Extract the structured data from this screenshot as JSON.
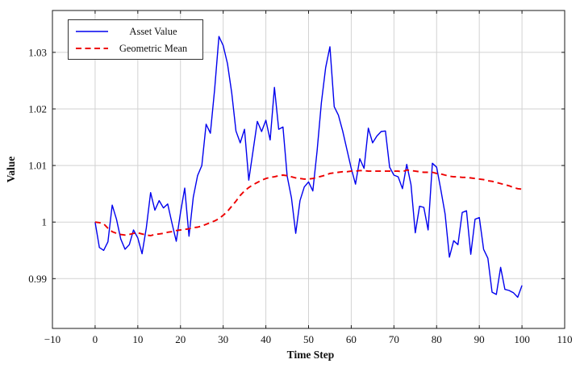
{
  "chart_data": {
    "type": "line",
    "title": "",
    "xlabel": "Time Step",
    "ylabel": "Value",
    "xlim": [
      -10,
      110
    ],
    "ylim": [
      0.9812,
      1.0374
    ],
    "x_ticks": [
      -10,
      0,
      10,
      20,
      30,
      40,
      50,
      60,
      70,
      80,
      90,
      100,
      110
    ],
    "x_tick_labels": [
      "−10",
      "0",
      "10",
      "20",
      "30",
      "40",
      "50",
      "60",
      "70",
      "80",
      "90",
      "100",
      "110"
    ],
    "y_ticks": [
      0.99,
      1.0,
      1.01,
      1.02,
      1.03
    ],
    "y_tick_labels": [
      "0.99",
      "1",
      "1.01",
      "1.02",
      "1.03"
    ],
    "grid": true,
    "legend_position": "top-left",
    "x": [
      0,
      1,
      2,
      3,
      4,
      5,
      6,
      7,
      8,
      9,
      10,
      11,
      12,
      13,
      14,
      15,
      16,
      17,
      18,
      19,
      20,
      21,
      22,
      23,
      24,
      25,
      26,
      27,
      28,
      29,
      30,
      31,
      32,
      33,
      34,
      35,
      36,
      37,
      38,
      39,
      40,
      41,
      42,
      43,
      44,
      45,
      46,
      47,
      48,
      49,
      50,
      51,
      52,
      53,
      54,
      55,
      56,
      57,
      58,
      59,
      60,
      61,
      62,
      63,
      64,
      65,
      66,
      67,
      68,
      69,
      70,
      71,
      72,
      73,
      74,
      75,
      76,
      77,
      78,
      79,
      80,
      81,
      82,
      83,
      84,
      85,
      86,
      87,
      88,
      89,
      90,
      91,
      92,
      93,
      94,
      95,
      96,
      97,
      98,
      99,
      100
    ],
    "series": [
      {
        "name": "Asset Value",
        "color": "#0000ee",
        "style": "solid",
        "values": [
          1.0,
          0.9955,
          0.995,
          0.9965,
          1.003,
          1.0005,
          0.997,
          0.9952,
          0.996,
          0.9986,
          0.9972,
          0.9944,
          0.999,
          1.0052,
          1.0021,
          1.0038,
          1.0025,
          1.0032,
          0.9998,
          0.9966,
          1.0017,
          1.006,
          0.9975,
          1.0044,
          1.0082,
          1.01,
          1.0173,
          1.0157,
          1.0235,
          1.0328,
          1.0312,
          1.028,
          1.0228,
          1.0161,
          1.014,
          1.0164,
          1.0074,
          1.0126,
          1.0178,
          1.016,
          1.018,
          1.0145,
          1.0238,
          1.0164,
          1.0168,
          1.0081,
          1.0043,
          0.998,
          1.0038,
          1.0062,
          1.0071,
          1.0055,
          1.0126,
          1.0211,
          1.0273,
          1.031,
          1.0204,
          1.0189,
          1.0161,
          1.0128,
          1.0095,
          1.0067,
          1.0112,
          1.0095,
          1.0166,
          1.014,
          1.0152,
          1.016,
          1.0161,
          1.0097,
          1.0083,
          1.008,
          1.0059,
          1.0102,
          1.0066,
          0.9981,
          1.0028,
          1.0026,
          0.9986,
          1.0104,
          1.0097,
          1.0057,
          1.0014,
          0.9938,
          0.9967,
          0.996,
          1.0017,
          1.002,
          0.9943,
          1.0005,
          1.0008,
          0.9952,
          0.9936,
          0.9876,
          0.9872,
          0.992,
          0.9881,
          0.9879,
          0.9875,
          0.9867,
          0.9888
        ]
      },
      {
        "name": "Geometric Mean",
        "color": "#ee0000",
        "style": "dashed",
        "values": [
          1.0,
          0.9999,
          0.9997,
          0.9989,
          0.9983,
          0.998,
          0.9978,
          0.9977,
          0.9978,
          0.998,
          0.9981,
          0.9979,
          0.9977,
          0.9976,
          0.9978,
          0.9979,
          0.998,
          0.9982,
          0.9983,
          0.9985,
          0.9986,
          0.9987,
          0.9988,
          0.999,
          0.9991,
          0.9993,
          0.9996,
          0.9999,
          1.0002,
          1.0006,
          1.0012,
          1.0019,
          1.0028,
          1.0037,
          1.0047,
          1.0055,
          1.0061,
          1.0066,
          1.007,
          1.0074,
          1.0077,
          1.0079,
          1.008,
          1.0082,
          1.0083,
          1.0082,
          1.008,
          1.0078,
          1.0077,
          1.0076,
          1.0076,
          1.0077,
          1.0079,
          1.0081,
          1.0083,
          1.0086,
          1.0087,
          1.0088,
          1.0089,
          1.0089,
          1.009,
          1.009,
          1.0091,
          1.0091,
          1.009,
          1.009,
          1.009,
          1.009,
          1.009,
          1.009,
          1.009,
          1.009,
          1.0089,
          1.0092,
          1.0091,
          1.009,
          1.0089,
          1.0088,
          1.0088,
          1.0088,
          1.0086,
          1.0085,
          1.0083,
          1.0081,
          1.008,
          1.008,
          1.0079,
          1.0079,
          1.0078,
          1.0077,
          1.0076,
          1.0075,
          1.0073,
          1.0072,
          1.007,
          1.0068,
          1.0066,
          1.0064,
          1.0061,
          1.0059,
          1.0058
        ]
      }
    ]
  },
  "colors": {
    "grid": "#d2d2d2",
    "axis": "#1a1a1a",
    "background": "#ffffff"
  }
}
